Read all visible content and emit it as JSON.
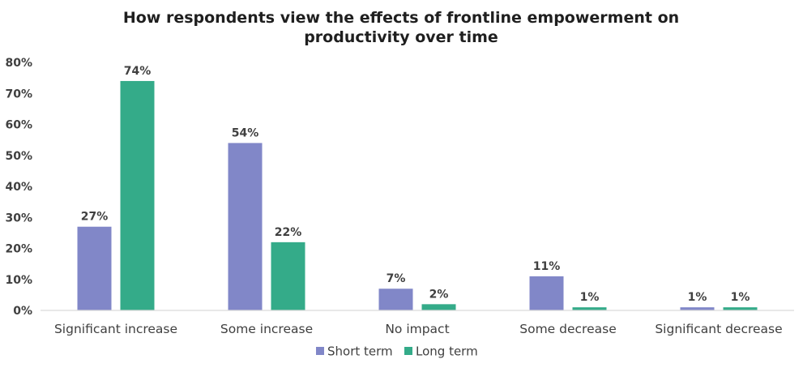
{
  "chart_data": {
    "type": "bar",
    "title": "How respondents view the effects of frontline empowerment on productivity over time",
    "title_lines": [
      "How respondents view the effects of frontline empowerment on",
      "productivity over time"
    ],
    "categories": [
      "Significant increase",
      "Some increase",
      "No impact",
      "Some decrease",
      "Significant decrease"
    ],
    "series": [
      {
        "name": "Short term",
        "color": "#8187c8",
        "values": [
          27,
          54,
          7,
          11,
          1
        ],
        "labels": [
          "27%",
          "54%",
          "7%",
          "11%",
          "1%"
        ]
      },
      {
        "name": "Long term",
        "color": "#34ab89",
        "values": [
          74,
          22,
          2,
          1,
          1
        ],
        "labels": [
          "74%",
          "22%",
          "2%",
          "1%",
          "1%"
        ]
      }
    ],
    "ylim": [
      0,
      80
    ],
    "yticks": [
      0,
      10,
      20,
      30,
      40,
      50,
      60,
      70,
      80
    ],
    "ytick_labels": [
      "0%",
      "10%",
      "20%",
      "30%",
      "40%",
      "50%",
      "60%",
      "70%",
      "80%"
    ],
    "xlabel": "",
    "ylabel": "",
    "grid": false,
    "legend_position": "bottom",
    "axis_color": "#d9d9d9"
  }
}
